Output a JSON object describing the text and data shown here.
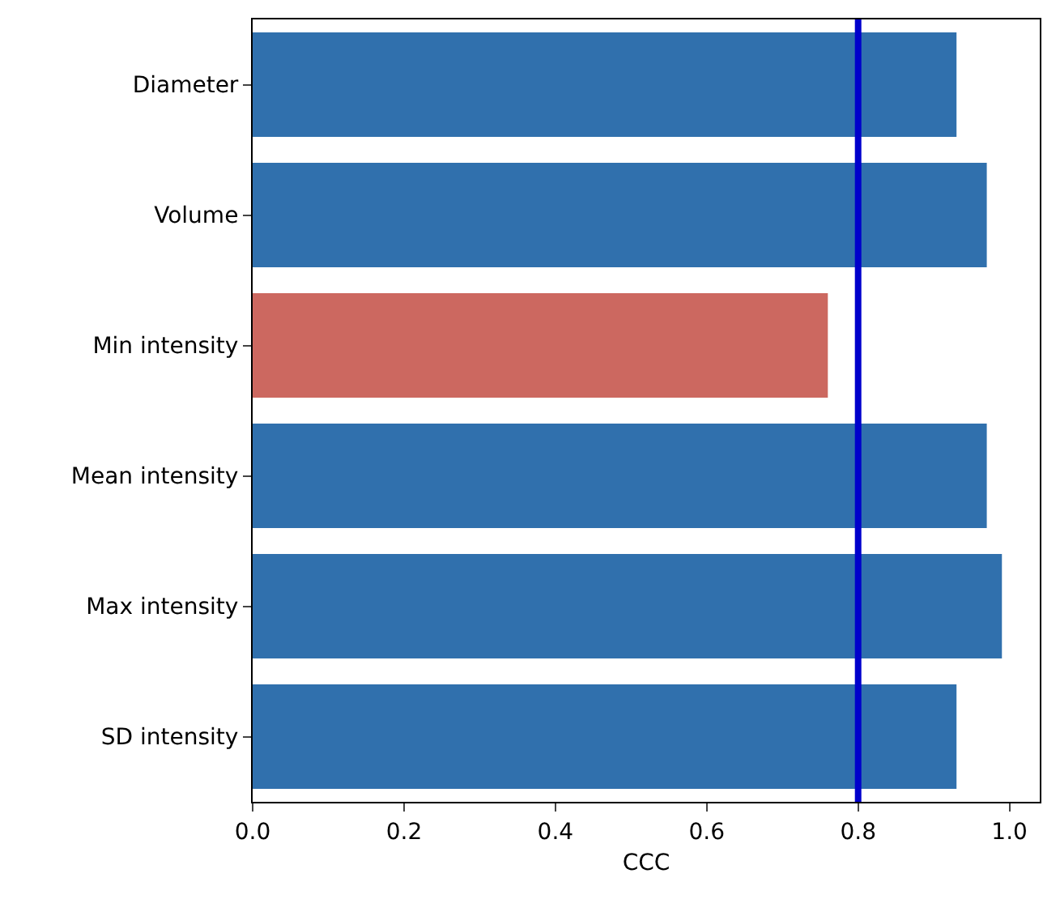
{
  "chart_data": {
    "type": "bar",
    "orientation": "horizontal",
    "xlabel": "CCC",
    "categories": [
      "Diameter",
      "Volume",
      "Min intensity",
      "Mean intensity",
      "Max intensity",
      "SD intensity"
    ],
    "values": [
      0.93,
      0.97,
      0.76,
      0.97,
      0.99,
      0.93
    ],
    "colors": [
      "#3070ad",
      "#3070ad",
      "#cc6860",
      "#3070ad",
      "#3070ad",
      "#3070ad"
    ],
    "xlim": [
      0,
      1.04
    ],
    "xticks": [
      {
        "value": 0,
        "label": "0.0"
      },
      0.2,
      0.4,
      0.6,
      0.8,
      {
        "value": 1,
        "label": "1.0"
      }
    ],
    "ref_lines": [
      {
        "axis": "x",
        "value": 0.8,
        "color": "#0000cc"
      }
    ]
  }
}
